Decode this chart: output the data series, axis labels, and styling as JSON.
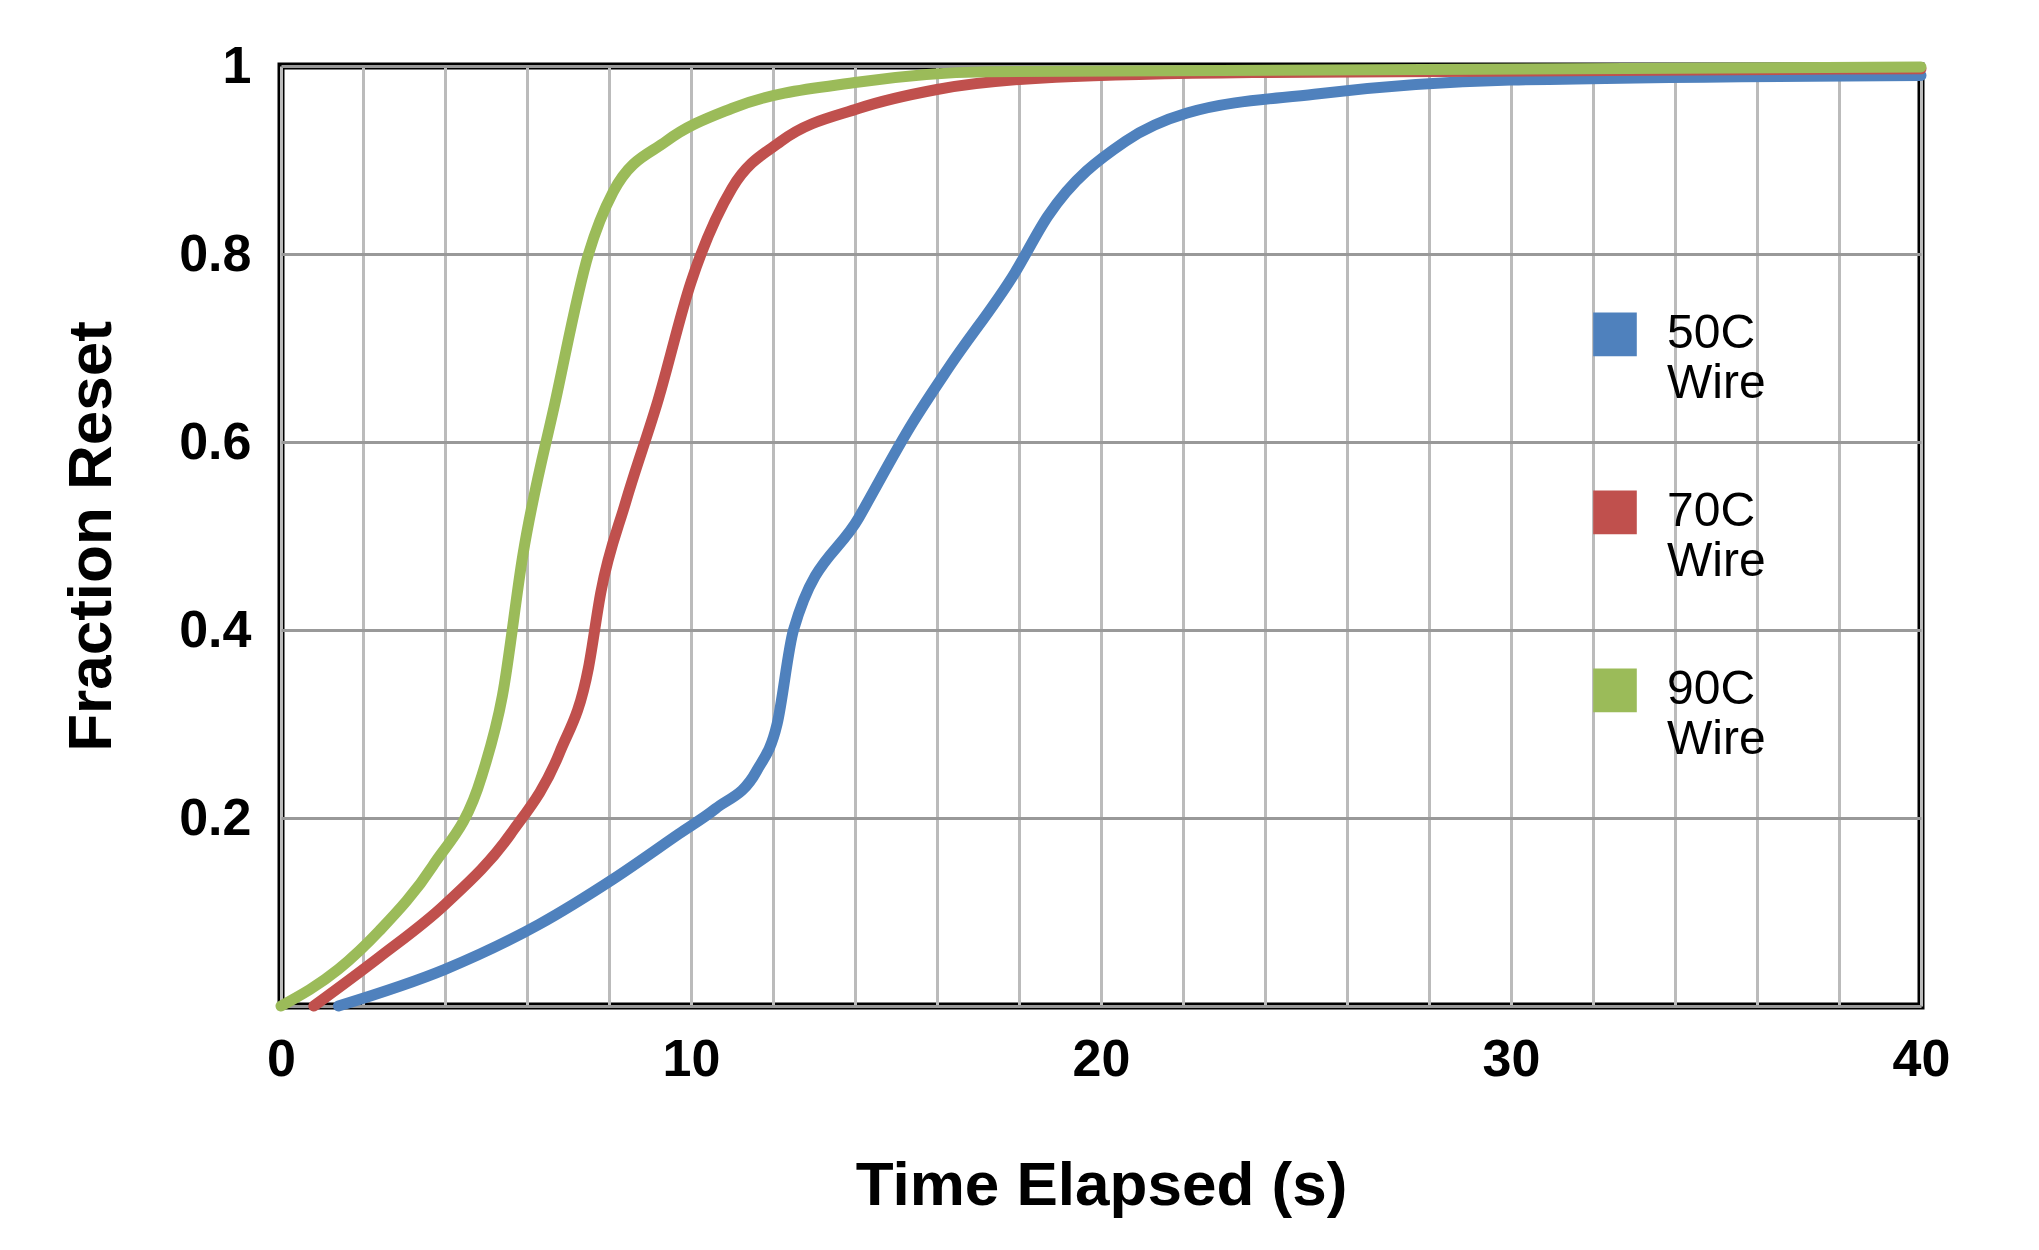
{
  "chart_data": {
    "type": "line",
    "xlabel": "Time Elapsed (s)",
    "ylabel": "Fraction Reset",
    "xlim": [
      0,
      40
    ],
    "ylim": [
      0,
      1
    ],
    "xticks": [
      0,
      {
        "value": 2,
        "label": null
      },
      {
        "value": 4,
        "label": null
      },
      {
        "value": 6,
        "label": null
      },
      {
        "value": 8,
        "label": null
      },
      10,
      {
        "value": 12,
        "label": null
      },
      {
        "value": 14,
        "label": null
      },
      {
        "value": 16,
        "label": null
      },
      {
        "value": 18,
        "label": null
      },
      20,
      {
        "value": 22,
        "label": null
      },
      {
        "value": 24,
        "label": null
      },
      {
        "value": 26,
        "label": null
      },
      {
        "value": 28,
        "label": null
      },
      30,
      {
        "value": 32,
        "label": null
      },
      {
        "value": 34,
        "label": null
      },
      {
        "value": 36,
        "label": null
      },
      {
        "value": 38,
        "label": null
      },
      40
    ],
    "yticks": [
      {
        "value": 0,
        "label": null
      },
      0.2,
      0.4,
      0.6,
      0.8,
      1
    ],
    "grid": true,
    "legend": "right",
    "line_style": "solid",
    "marker": "none",
    "series": [
      {
        "name": "50C Wire",
        "color": "#4f81bd",
        "x": [
          1.4,
          4.0,
          6.3,
          8.1,
          9.7,
          10.6,
          11.6,
          12.1,
          12.5,
          14.1,
          15.4,
          16.3,
          17.9,
          18.7,
          20.6,
          22.1,
          25.2,
          30,
          40
        ],
        "values": [
          0,
          0.039,
          0.087,
          0.135,
          0.183,
          0.21,
          0.25,
          0.3,
          0.4,
          0.52,
          0.62,
          0.68,
          0.78,
          0.84,
          0.92,
          0.95,
          0.97,
          0.985,
          0.99
        ]
      },
      {
        "name": "70C Wire",
        "color": "#c0504d",
        "x": [
          0.8,
          2.4,
          4.0,
          5.6,
          6.8,
          7.5,
          7.8,
          8.4,
          9.2,
          10.0,
          11.0,
          12.2,
          14.1,
          16.0,
          18.9,
          23.7,
          40
        ],
        "values": [
          0,
          0.052,
          0.108,
          0.183,
          0.27,
          0.36,
          0.44,
          0.535,
          0.645,
          0.77,
          0.87,
          0.92,
          0.955,
          0.975,
          0.988,
          0.993,
          0.997
        ]
      },
      {
        "name": "90C Wire",
        "color": "#9bbb59",
        "x": [
          0,
          1.4,
          2.4,
          3.7,
          4.9,
          5.4,
          5.9,
          6.7,
          7.5,
          8.1,
          9.4,
          11.0,
          14.1,
          17.2,
          40
        ],
        "values": [
          0,
          0.039,
          0.08,
          0.149,
          0.245,
          0.33,
          0.48,
          0.645,
          0.8,
          0.866,
          0.92,
          0.955,
          0.983,
          0.994,
          0.999
        ]
      }
    ]
  }
}
